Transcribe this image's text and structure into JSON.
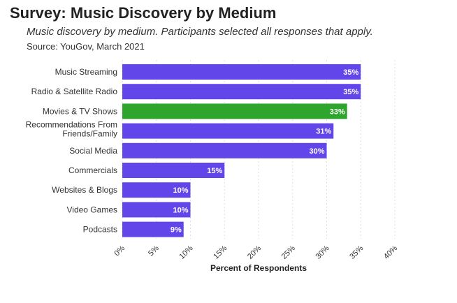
{
  "header": {
    "title": "Survey: Music Discovery by Medium",
    "subtitle": "Music discovery by medium. Participants selected all responses that apply.",
    "source": "Source: YouGov, March 2021"
  },
  "colors": {
    "default_bar": "#6246ea",
    "highlight_bar": "#2ea62e",
    "grid": "#dddddd",
    "label_text": "#333333",
    "value_text": "#ffffff"
  },
  "chart_data": {
    "type": "bar",
    "orientation": "horizontal",
    "xlabel": "Percent of Respondents",
    "ylabel": "",
    "xlim": [
      0,
      40
    ],
    "grid": true,
    "highlight_category": "Movies & TV Shows",
    "categories": [
      [
        "Music Streaming"
      ],
      [
        "Radio & Satellite Radio"
      ],
      [
        "Movies & TV Shows"
      ],
      [
        "Recommendations From",
        "Friends/Family"
      ],
      [
        "Social Media"
      ],
      [
        "Commercials"
      ],
      [
        "Websites & Blogs"
      ],
      [
        "Video Games"
      ],
      [
        "Podcasts"
      ]
    ],
    "values": [
      35,
      35,
      33,
      31,
      30,
      15,
      10,
      10,
      9
    ],
    "value_labels": [
      "35%",
      "35%",
      "33%",
      "31%",
      "30%",
      "15%",
      "10%",
      "10%",
      "9%"
    ],
    "ticks": [
      0,
      5,
      10,
      15,
      20,
      25,
      30,
      35,
      40
    ],
    "tick_labels": [
      "0%",
      "5%",
      "10%",
      "15%",
      "20%",
      "25%",
      "30%",
      "35%",
      "40%"
    ]
  }
}
